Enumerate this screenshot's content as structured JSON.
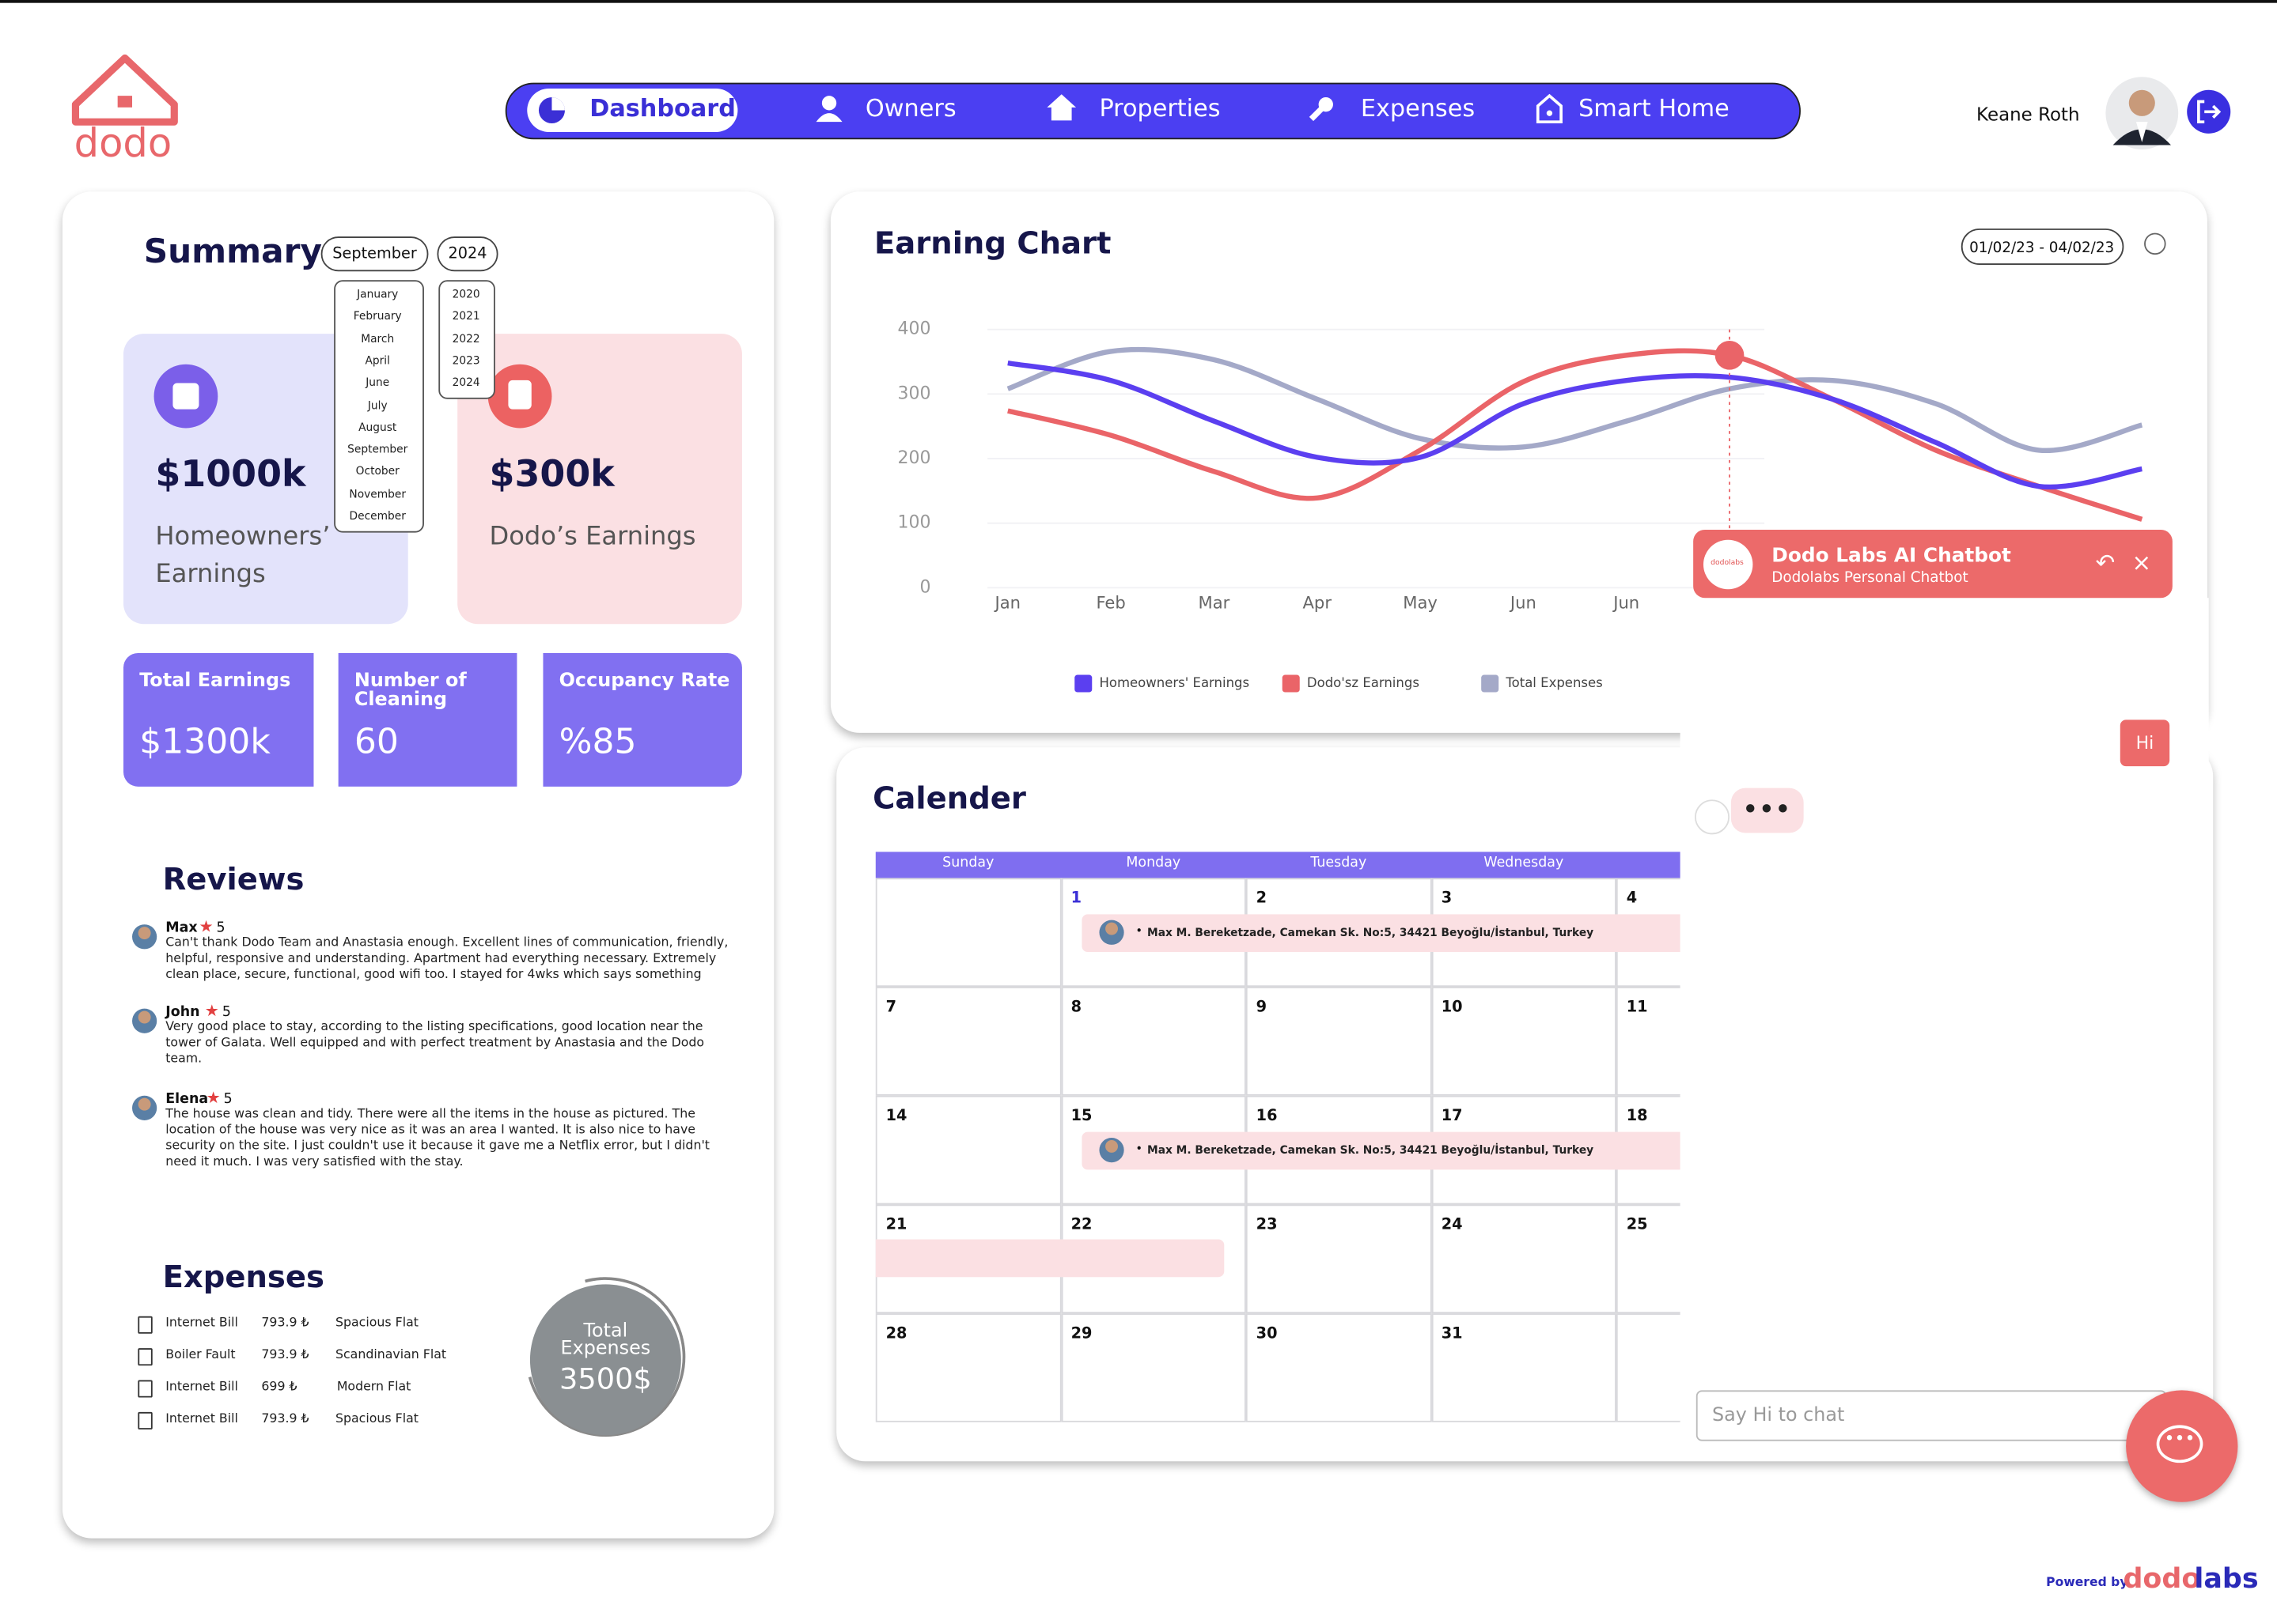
{
  "header": {
    "logo": "dodo",
    "nav": [
      "Dashboard",
      "Owners",
      "Properties",
      "Expenses",
      "Smart Home"
    ],
    "user": "Keane Roth"
  },
  "summary": {
    "title": "Summary",
    "month": "September",
    "year": "2024",
    "months": [
      "January",
      "February",
      "March",
      "April",
      "June",
      "July",
      "August",
      "September",
      "October",
      "November",
      "December"
    ],
    "years": [
      "2020",
      "2021",
      "2022",
      "2023",
      "2024"
    ],
    "cards": [
      {
        "value": "$1000k",
        "label": "Homeowners’ Earnings"
      },
      {
        "value": "$300k",
        "label": "Dodo’s Earnings"
      }
    ],
    "stats": [
      {
        "label": "Total Earnings",
        "value": "$1300k"
      },
      {
        "label": "Number of Cleaning",
        "value": "60"
      },
      {
        "label": "Occupancy Rate",
        "value": "%85"
      }
    ]
  },
  "reviews": {
    "title": "Reviews",
    "items": [
      {
        "name": "Max",
        "rating": "5",
        "text": "Can't thank Dodo Team and Anastasia enough. Excellent lines of communication, friendly, helpful, responsive and understanding. Apartment had everything necessary. Extremely clean place, secure, functional, good wifi too. I stayed for 4wks which says something"
      },
      {
        "name": "John",
        "rating": "5",
        "text": "Very good place to stay, according to the listing specifications, good location near the tower of Galata. Well equipped and with perfect treatment by Anastasia and the Dodo team."
      },
      {
        "name": "Elena",
        "rating": "5",
        "text": "The house was clean and tidy. There were all the items in the house as pictured. The location of the house was very nice as it was an area I wanted. It is also nice to have security on the site. I just couldn't use it because it gave me a Netflix error, but I didn't need it much. I was very satisfied with the stay."
      }
    ]
  },
  "expenses": {
    "title": "Expenses",
    "items": [
      [
        "Internet Bill",
        "793.9 ₺",
        "Spacious Flat"
      ],
      [
        "Boiler Fault",
        "793.9 ₺",
        "Scandinavian Flat"
      ],
      [
        "Internet Bill",
        "699 ₺",
        "Modern Flat"
      ],
      [
        "Internet Bill",
        "793.9 ₺",
        "Spacious Flat"
      ]
    ],
    "total_label": "Total Expenses",
    "total": "3500$"
  },
  "chart_data": {
    "type": "line",
    "title": "Earning Chart",
    "date_range": "01/02/23 - 04/02/23",
    "categories": [
      "Jan",
      "Feb",
      "Mar",
      "Apr",
      "May",
      "Jun",
      "Jun",
      null,
      null,
      null,
      null,
      null
    ],
    "series": [
      {
        "name": "Homeowners' Earnings",
        "color": "#5b3ff0",
        "values": [
          348,
          321,
          258,
          202,
          202,
          285,
          321,
          326,
          292,
          225,
          157,
          184
        ]
      },
      {
        "name": "Dodo'sz Earnings",
        "color": "#ea6468",
        "values": [
          274,
          236,
          180,
          139,
          213,
          319,
          360,
          360,
          292,
          213,
          157,
          106
        ]
      },
      {
        "name": "Total Expenses",
        "color": "#a4a9c8",
        "values": [
          308,
          366,
          353,
          292,
          231,
          218,
          258,
          308,
          321,
          285,
          213,
          252
        ]
      }
    ],
    "ylim": [
      0,
      400
    ],
    "yticks": [
      0,
      100,
      200,
      300,
      400
    ],
    "grid": true,
    "legend": "bottom"
  },
  "calendar": {
    "title": "Calender",
    "days": [
      "Sunday",
      "Monday",
      "Tuesday",
      "Wednesday"
    ],
    "weeks": [
      [
        null,
        "1",
        "2",
        "3",
        "4"
      ],
      [
        "7",
        "8",
        "9",
        "10",
        "11"
      ],
      [
        "14",
        "15",
        "16",
        "17",
        "18"
      ],
      [
        "21",
        "22",
        "23",
        "24",
        "25"
      ],
      [
        "28",
        "29",
        "30",
        "31"
      ]
    ],
    "events": [
      "Max M. Bereketzade, Camekan Sk. No:5, 34421 Beyoğlu/İstanbul, Turkey",
      "Max M. Bereketzade, Camekan Sk. No:5, 34421 Beyoğlu/İstanbul, Turkey"
    ]
  },
  "chatbot": {
    "title": "Dodo Labs AI Chatbot",
    "subtitle": "Dodolabs Personal Chatbot",
    "message": "Hi",
    "placeholder": "Say Hi to chat"
  },
  "footer": {
    "powered": "Powered by",
    "brand_a": "dodo",
    "brand_b": "labs"
  }
}
